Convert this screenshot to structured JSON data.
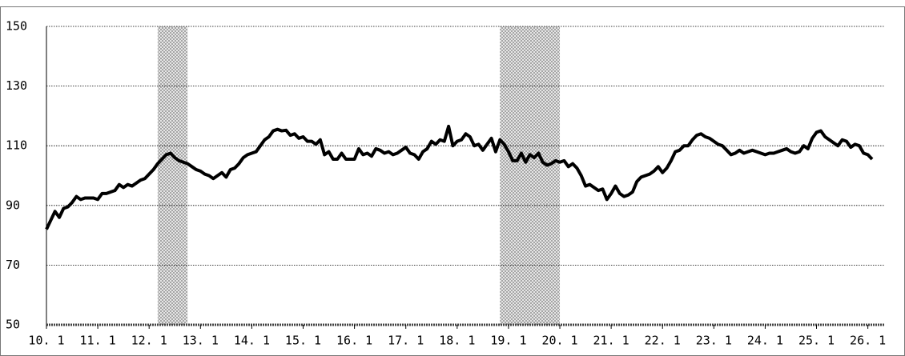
{
  "chart_data": {
    "type": "line",
    "x": [
      0,
      1,
      2,
      3,
      4,
      5,
      6,
      7,
      8,
      9,
      10,
      11,
      12,
      13,
      14,
      15,
      16,
      17,
      18,
      19,
      20,
      21,
      22,
      23,
      24,
      25,
      26,
      27,
      28,
      29,
      30,
      31,
      32,
      33,
      34,
      35,
      36,
      37,
      38,
      39,
      40,
      41,
      42,
      43,
      44,
      45,
      46,
      47,
      48,
      49,
      50,
      51,
      52,
      53,
      54,
      55,
      56,
      57,
      58,
      59,
      60,
      61,
      62,
      63,
      64,
      65,
      66,
      67,
      68,
      69,
      70,
      71,
      72,
      73,
      74,
      75,
      76,
      77,
      78,
      79,
      80,
      81,
      82,
      83,
      84,
      85,
      86,
      87,
      88,
      89,
      90,
      91,
      92,
      93,
      94,
      95,
      96,
      97,
      98,
      99,
      100,
      101,
      102,
      103,
      104,
      105,
      106,
      107,
      108,
      109,
      110,
      111,
      112,
      113,
      114,
      115,
      116,
      117,
      118,
      119,
      120,
      121,
      122,
      123,
      124,
      125,
      126,
      127,
      128,
      129,
      130,
      131,
      132,
      133,
      134,
      135,
      136,
      137,
      138,
      139,
      140,
      141,
      142,
      143,
      144,
      145,
      146,
      147,
      148,
      149,
      150,
      151,
      152,
      153,
      154,
      155,
      156,
      157,
      158,
      159,
      160,
      161,
      162,
      163,
      164,
      165,
      166,
      167,
      168,
      169,
      170,
      171,
      172,
      173,
      174,
      175,
      176,
      177,
      178,
      179,
      180,
      181,
      182,
      183,
      184,
      185,
      186,
      187,
      188,
      189,
      190,
      191,
      192,
      193
    ],
    "values": [
      82,
      85,
      88,
      86,
      89,
      89.5,
      91,
      93,
      92,
      92.5,
      92.5,
      92.5,
      92,
      94,
      94,
      94.5,
      95,
      97,
      96,
      97,
      96.5,
      97.5,
      98.5,
      99,
      100.5,
      102,
      104,
      105.5,
      107,
      107.5,
      106,
      105,
      104.5,
      104,
      103,
      102,
      101.5,
      100.5,
      100,
      99,
      100,
      101,
      99.5,
      102,
      102.5,
      104,
      106,
      107,
      107.5,
      108,
      110,
      112,
      113,
      115,
      115.5,
      115,
      115.2,
      113.5,
      114,
      112.5,
      113,
      111.5,
      111.5,
      110.5,
      112,
      107,
      108,
      105.5,
      105.5,
      107.5,
      105.5,
      105.5,
      105.5,
      109,
      107,
      107.5,
      106.5,
      109,
      108.5,
      107.5,
      108,
      107,
      107.5,
      108.5,
      109.5,
      107.5,
      107,
      105.5,
      108,
      109,
      111.5,
      110.5,
      112,
      111.5,
      116.5,
      110,
      111.5,
      112,
      114,
      113,
      110,
      110.5,
      108.5,
      110.5,
      112.5,
      108,
      112,
      110.5,
      108,
      105,
      105,
      107.5,
      104.5,
      107,
      106,
      107.5,
      104.5,
      103.5,
      104,
      105,
      104.5,
      105,
      103,
      104,
      102.5,
      100,
      96.5,
      97,
      96,
      95,
      95.5,
      92,
      94,
      96.5,
      94,
      93,
      93.5,
      94.5,
      98,
      99.5,
      100,
      100.5,
      101.5,
      103,
      101,
      102.5,
      105,
      108,
      108.5,
      110,
      110,
      112,
      113.5,
      114,
      113,
      112.5,
      111.5,
      110.5,
      110,
      108.5,
      107,
      107.5,
      108.5,
      107.5,
      108,
      108.5,
      108,
      107.5,
      107,
      107.5,
      107.5,
      108,
      108.5,
      109,
      108,
      107.5,
      108,
      110,
      109,
      112.5,
      114.5,
      115,
      113,
      112,
      111,
      110,
      112,
      111.5,
      109.5,
      110.5,
      110,
      107.5,
      107,
      105.5
    ],
    "color": "#000000",
    "xlim": [
      0,
      196
    ],
    "xticks": [
      {
        "value": 0,
        "label": "10. 1"
      },
      {
        "value": 12,
        "label": "11. 1"
      },
      {
        "value": 24,
        "label": "12. 1"
      },
      {
        "value": 36,
        "label": "13. 1"
      },
      {
        "value": 48,
        "label": "14. 1"
      },
      {
        "value": 60,
        "label": "15. 1"
      },
      {
        "value": 72,
        "label": "16. 1"
      },
      {
        "value": 84,
        "label": "17. 1"
      },
      {
        "value": 96,
        "label": "18. 1"
      },
      {
        "value": 108,
        "label": "19. 1"
      },
      {
        "value": 120,
        "label": "20. 1"
      },
      {
        "value": 132,
        "label": "21. 1"
      },
      {
        "value": 144,
        "label": "22. 1"
      },
      {
        "value": 156,
        "label": "23. 1"
      },
      {
        "value": 168,
        "label": "24. 1"
      },
      {
        "value": 180,
        "label": "25. 1"
      },
      {
        "value": 192,
        "label": "26. 1"
      }
    ],
    "ylim": [
      50,
      150
    ],
    "yticks": [
      50,
      70,
      90,
      110,
      130,
      150
    ],
    "grid": true,
    "shaded_periods": [
      [
        26,
        33
      ],
      [
        106,
        120
      ]
    ]
  }
}
